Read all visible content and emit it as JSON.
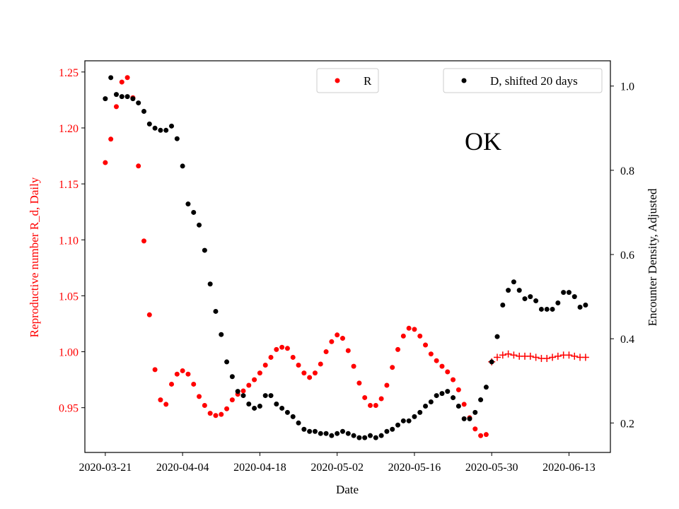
{
  "chart_data": {
    "type": "scatter",
    "annotation": "OK",
    "xlabel": "Date",
    "ylabel_left": "Reproductive number R_d, Daily",
    "ylabel_right": "Encounter Density, Adjusted",
    "x_ticks": [
      "2020-03-21",
      "2020-04-04",
      "2020-04-18",
      "2020-05-02",
      "2020-05-16",
      "2020-05-30",
      "2020-06-13"
    ],
    "x_range": [
      "2020-03-17",
      "2020-06-20"
    ],
    "y_left_ticks": [
      "0.95",
      "1.00",
      "1.05",
      "1.10",
      "1.15",
      "1.20",
      "1.25"
    ],
    "y_left_range": [
      0.91,
      1.26
    ],
    "y_right_ticks": [
      "0.2",
      "0.4",
      "0.6",
      "0.8",
      "1.0"
    ],
    "y_right_range": [
      0.13,
      1.06
    ],
    "legend": [
      {
        "label": "R",
        "color": "#ff0000",
        "placement": "upper-center"
      },
      {
        "label": "D, shifted 20 days",
        "color": "#000000",
        "placement": "upper-right"
      }
    ],
    "colors": {
      "R": "#ff0000",
      "D": "#000000",
      "left_axis": "#ff0000",
      "right_axis": "#000000"
    },
    "series": [
      {
        "name": "R",
        "axis": "left",
        "marker": "circle",
        "color": "#ff0000",
        "x": [
          "2020-03-21",
          "2020-03-22",
          "2020-03-23",
          "2020-03-24",
          "2020-03-25",
          "2020-03-26",
          "2020-03-27",
          "2020-03-28",
          "2020-03-29",
          "2020-03-30",
          "2020-03-31",
          "2020-04-01",
          "2020-04-02",
          "2020-04-03",
          "2020-04-04",
          "2020-04-05",
          "2020-04-06",
          "2020-04-07",
          "2020-04-08",
          "2020-04-09",
          "2020-04-10",
          "2020-04-11",
          "2020-04-12",
          "2020-04-13",
          "2020-04-14",
          "2020-04-15",
          "2020-04-16",
          "2020-04-17",
          "2020-04-18",
          "2020-04-19",
          "2020-04-20",
          "2020-04-21",
          "2020-04-22",
          "2020-04-23",
          "2020-04-24",
          "2020-04-25",
          "2020-04-26",
          "2020-04-27",
          "2020-04-28",
          "2020-04-29",
          "2020-04-30",
          "2020-05-01",
          "2020-05-02",
          "2020-05-03",
          "2020-05-04",
          "2020-05-05",
          "2020-05-06",
          "2020-05-07",
          "2020-05-08",
          "2020-05-09",
          "2020-05-10",
          "2020-05-11",
          "2020-05-12",
          "2020-05-13",
          "2020-05-14",
          "2020-05-15",
          "2020-05-16",
          "2020-05-17",
          "2020-05-18",
          "2020-05-19",
          "2020-05-20",
          "2020-05-21",
          "2020-05-22",
          "2020-05-23",
          "2020-05-24",
          "2020-05-25",
          "2020-05-26",
          "2020-05-27",
          "2020-05-28",
          "2020-05-29"
        ],
        "y": [
          1.169,
          1.19,
          1.219,
          1.241,
          1.245,
          1.227,
          1.166,
          1.099,
          1.033,
          0.984,
          0.957,
          0.953,
          0.971,
          0.98,
          0.983,
          0.98,
          0.971,
          0.96,
          0.952,
          0.945,
          0.943,
          0.944,
          0.949,
          0.957,
          0.962,
          0.965,
          0.97,
          0.975,
          0.981,
          0.988,
          0.995,
          1.002,
          1.004,
          1.003,
          0.995,
          0.988,
          0.981,
          0.977,
          0.981,
          0.989,
          1.0,
          1.009,
          1.015,
          1.012,
          1.001,
          0.987,
          0.972,
          0.959,
          0.952,
          0.952,
          0.958,
          0.97,
          0.986,
          1.002,
          1.014,
          1.021,
          1.02,
          1.014,
          1.006,
          0.998,
          0.992,
          0.987,
          0.982,
          0.975,
          0.966,
          0.953,
          0.941,
          0.931,
          0.925,
          0.926
        ]
      },
      {
        "name": "",
        "axis": "left",
        "marker": "plus",
        "color": "#ff0000",
        "x": [
          "2020-05-30",
          "2020-05-31",
          "2020-06-01",
          "2020-06-02",
          "2020-06-03",
          "2020-06-04",
          "2020-06-05",
          "2020-06-06",
          "2020-06-07",
          "2020-06-08",
          "2020-06-09",
          "2020-06-10",
          "2020-06-11",
          "2020-06-12",
          "2020-06-13",
          "2020-06-14",
          "2020-06-15",
          "2020-06-16"
        ],
        "y": [
          0.991,
          0.995,
          0.997,
          0.998,
          0.997,
          0.996,
          0.996,
          0.996,
          0.995,
          0.994,
          0.994,
          0.995,
          0.996,
          0.997,
          0.997,
          0.996,
          0.995,
          0.995
        ]
      },
      {
        "name": "D, shifted 20 days",
        "axis": "right",
        "marker": "circle",
        "color": "#000000",
        "x": [
          "2020-03-21",
          "2020-03-22",
          "2020-03-23",
          "2020-03-24",
          "2020-03-25",
          "2020-03-26",
          "2020-03-27",
          "2020-03-28",
          "2020-03-29",
          "2020-03-30",
          "2020-03-31",
          "2020-04-01",
          "2020-04-02",
          "2020-04-03",
          "2020-04-04",
          "2020-04-05",
          "2020-04-06",
          "2020-04-07",
          "2020-04-08",
          "2020-04-09",
          "2020-04-10",
          "2020-04-11",
          "2020-04-12",
          "2020-04-13",
          "2020-04-14",
          "2020-04-15",
          "2020-04-16",
          "2020-04-17",
          "2020-04-18",
          "2020-04-19",
          "2020-04-20",
          "2020-04-21",
          "2020-04-22",
          "2020-04-23",
          "2020-04-24",
          "2020-04-25",
          "2020-04-26",
          "2020-04-27",
          "2020-04-28",
          "2020-04-29",
          "2020-04-30",
          "2020-05-01",
          "2020-05-02",
          "2020-05-03",
          "2020-05-04",
          "2020-05-05",
          "2020-05-06",
          "2020-05-07",
          "2020-05-08",
          "2020-05-09",
          "2020-05-10",
          "2020-05-11",
          "2020-05-12",
          "2020-05-13",
          "2020-05-14",
          "2020-05-15",
          "2020-05-16",
          "2020-05-17",
          "2020-05-18",
          "2020-05-19",
          "2020-05-20",
          "2020-05-21",
          "2020-05-22",
          "2020-05-23",
          "2020-05-24",
          "2020-05-25",
          "2020-05-26",
          "2020-05-27",
          "2020-05-28",
          "2020-05-29",
          "2020-05-30",
          "2020-05-31",
          "2020-06-01",
          "2020-06-02",
          "2020-06-03",
          "2020-06-04",
          "2020-06-05",
          "2020-06-06",
          "2020-06-07",
          "2020-06-08",
          "2020-06-09",
          "2020-06-10",
          "2020-06-11",
          "2020-06-12",
          "2020-06-13",
          "2020-06-14",
          "2020-06-15",
          "2020-06-16"
        ],
        "y": [
          0.97,
          1.02,
          0.98,
          0.975,
          0.975,
          0.97,
          0.96,
          0.94,
          0.91,
          0.9,
          0.895,
          0.895,
          0.905,
          0.875,
          0.81,
          0.72,
          0.7,
          0.67,
          0.61,
          0.53,
          0.465,
          0.41,
          0.345,
          0.31,
          0.275,
          0.265,
          0.245,
          0.235,
          0.24,
          0.265,
          0.265,
          0.245,
          0.235,
          0.225,
          0.215,
          0.2,
          0.185,
          0.18,
          0.18,
          0.175,
          0.175,
          0.17,
          0.175,
          0.18,
          0.175,
          0.17,
          0.165,
          0.165,
          0.17,
          0.165,
          0.17,
          0.18,
          0.185,
          0.195,
          0.205,
          0.205,
          0.215,
          0.225,
          0.24,
          0.25,
          0.265,
          0.27,
          0.275,
          0.26,
          0.24,
          0.21,
          0.21,
          0.225,
          0.255,
          0.285,
          0.345,
          0.405,
          0.48,
          0.515,
          0.535,
          0.515,
          0.495,
          0.5,
          0.49,
          0.47,
          0.47,
          0.47,
          0.485,
          0.51,
          0.51,
          0.5,
          0.475,
          0.48
        ]
      }
    ]
  }
}
